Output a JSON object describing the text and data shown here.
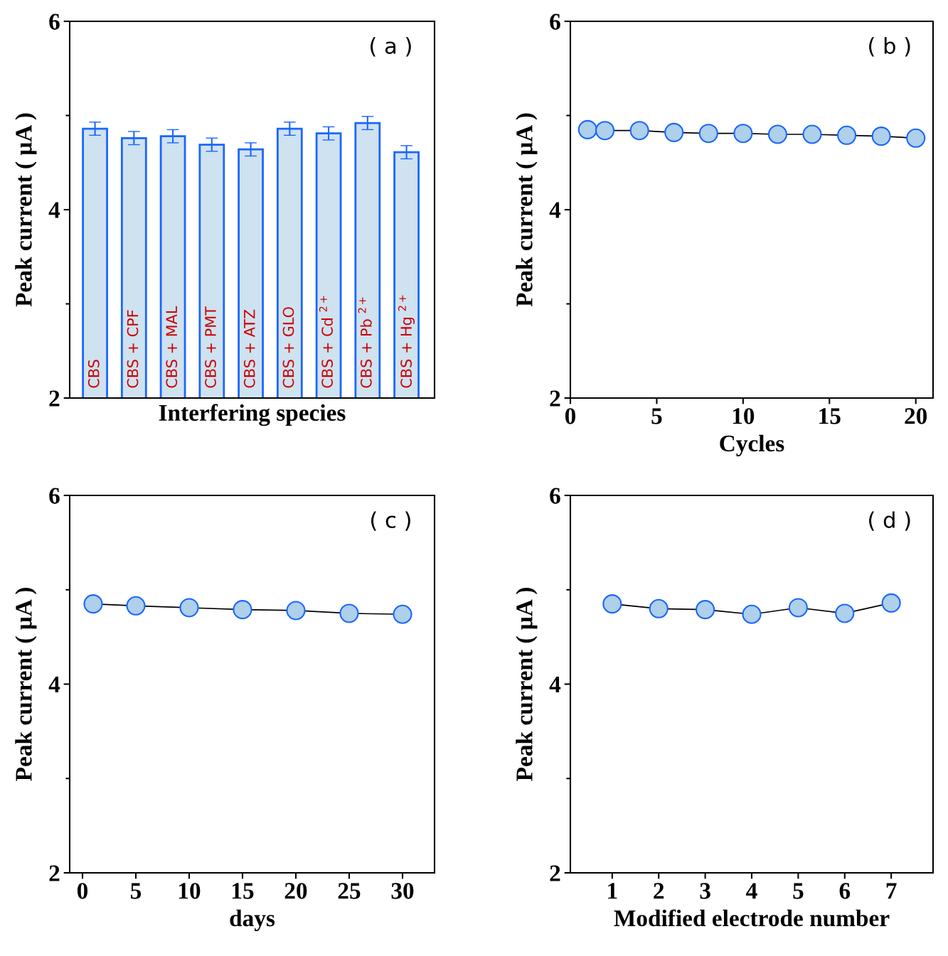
{
  "chart_data": [
    {
      "type": "bar",
      "xlabel": "Interfering species",
      "ylabel": "Peak current ( μA )",
      "annotations": [
        "( a )"
      ],
      "categories": [
        "CBS",
        "CBS + CPF",
        "CBS + MAL",
        "CBS + PMT",
        "CBS + ATZ",
        "CBS + GLO",
        "CBS + Cd $^{2+}$",
        "CBS + Pb $^{2+}$",
        "CBS + Hg $^{2+}$"
      ],
      "values": [
        4.86,
        4.76,
        4.78,
        4.69,
        4.64,
        4.86,
        4.81,
        4.92,
        4.61
      ],
      "errors": [
        0.07,
        0.07,
        0.07,
        0.07,
        0.07,
        0.07,
        0.07,
        0.07,
        0.07
      ],
      "color": "#cfe2f0",
      "ylim": [
        2,
        6
      ],
      "yticks": [
        2,
        4,
        6
      ],
      "grid": false,
      "legend": false
    },
    {
      "type": "line",
      "xlabel": "Cycles",
      "ylabel": "Peak current ( μA )",
      "annotations": [
        "( b )"
      ],
      "x": [
        1,
        2,
        4,
        6,
        8,
        10,
        12,
        14,
        16,
        18,
        20
      ],
      "values": [
        4.85,
        4.84,
        4.84,
        4.82,
        4.81,
        4.81,
        4.8,
        4.8,
        4.79,
        4.78,
        4.76
      ],
      "color": "#aed0ea",
      "line_style": "solid",
      "marker": "circle",
      "xlim": [
        0,
        21
      ],
      "xticks": [
        0,
        5,
        10,
        15,
        20
      ],
      "ylim": [
        2,
        6
      ],
      "yticks": [
        2,
        4,
        6
      ],
      "grid": false,
      "legend": false
    },
    {
      "type": "line",
      "xlabel": "days",
      "ylabel": "Peak current ( μA )",
      "annotations": [
        "( c )"
      ],
      "x": [
        1,
        5,
        10,
        15,
        20,
        25,
        30
      ],
      "values": [
        4.85,
        4.83,
        4.81,
        4.79,
        4.78,
        4.75,
        4.74
      ],
      "color": "#aed0ea",
      "line_style": "solid",
      "marker": "circle",
      "xlim": [
        -1.2,
        33
      ],
      "xticks": [
        0,
        5,
        10,
        15,
        20,
        25,
        30
      ],
      "ylim": [
        2,
        6
      ],
      "yticks": [
        2,
        4,
        6
      ],
      "grid": false,
      "legend": false
    },
    {
      "type": "line",
      "xlabel": "Modified electrode number",
      "ylabel": "Peak current ( μA )",
      "annotations": [
        "( d )"
      ],
      "x": [
        1,
        2,
        3,
        4,
        5,
        6,
        7
      ],
      "values": [
        4.85,
        4.8,
        4.79,
        4.74,
        4.81,
        4.75,
        4.86
      ],
      "color": "#aed0ea",
      "line_style": "solid",
      "marker": "circle",
      "xlim": [
        0.1,
        7.9
      ],
      "xticks": [
        1,
        2,
        3,
        4,
        5,
        6,
        7
      ],
      "ylim": [
        2,
        6
      ],
      "yticks": [
        2,
        4,
        6
      ],
      "grid": false,
      "legend": false
    }
  ]
}
